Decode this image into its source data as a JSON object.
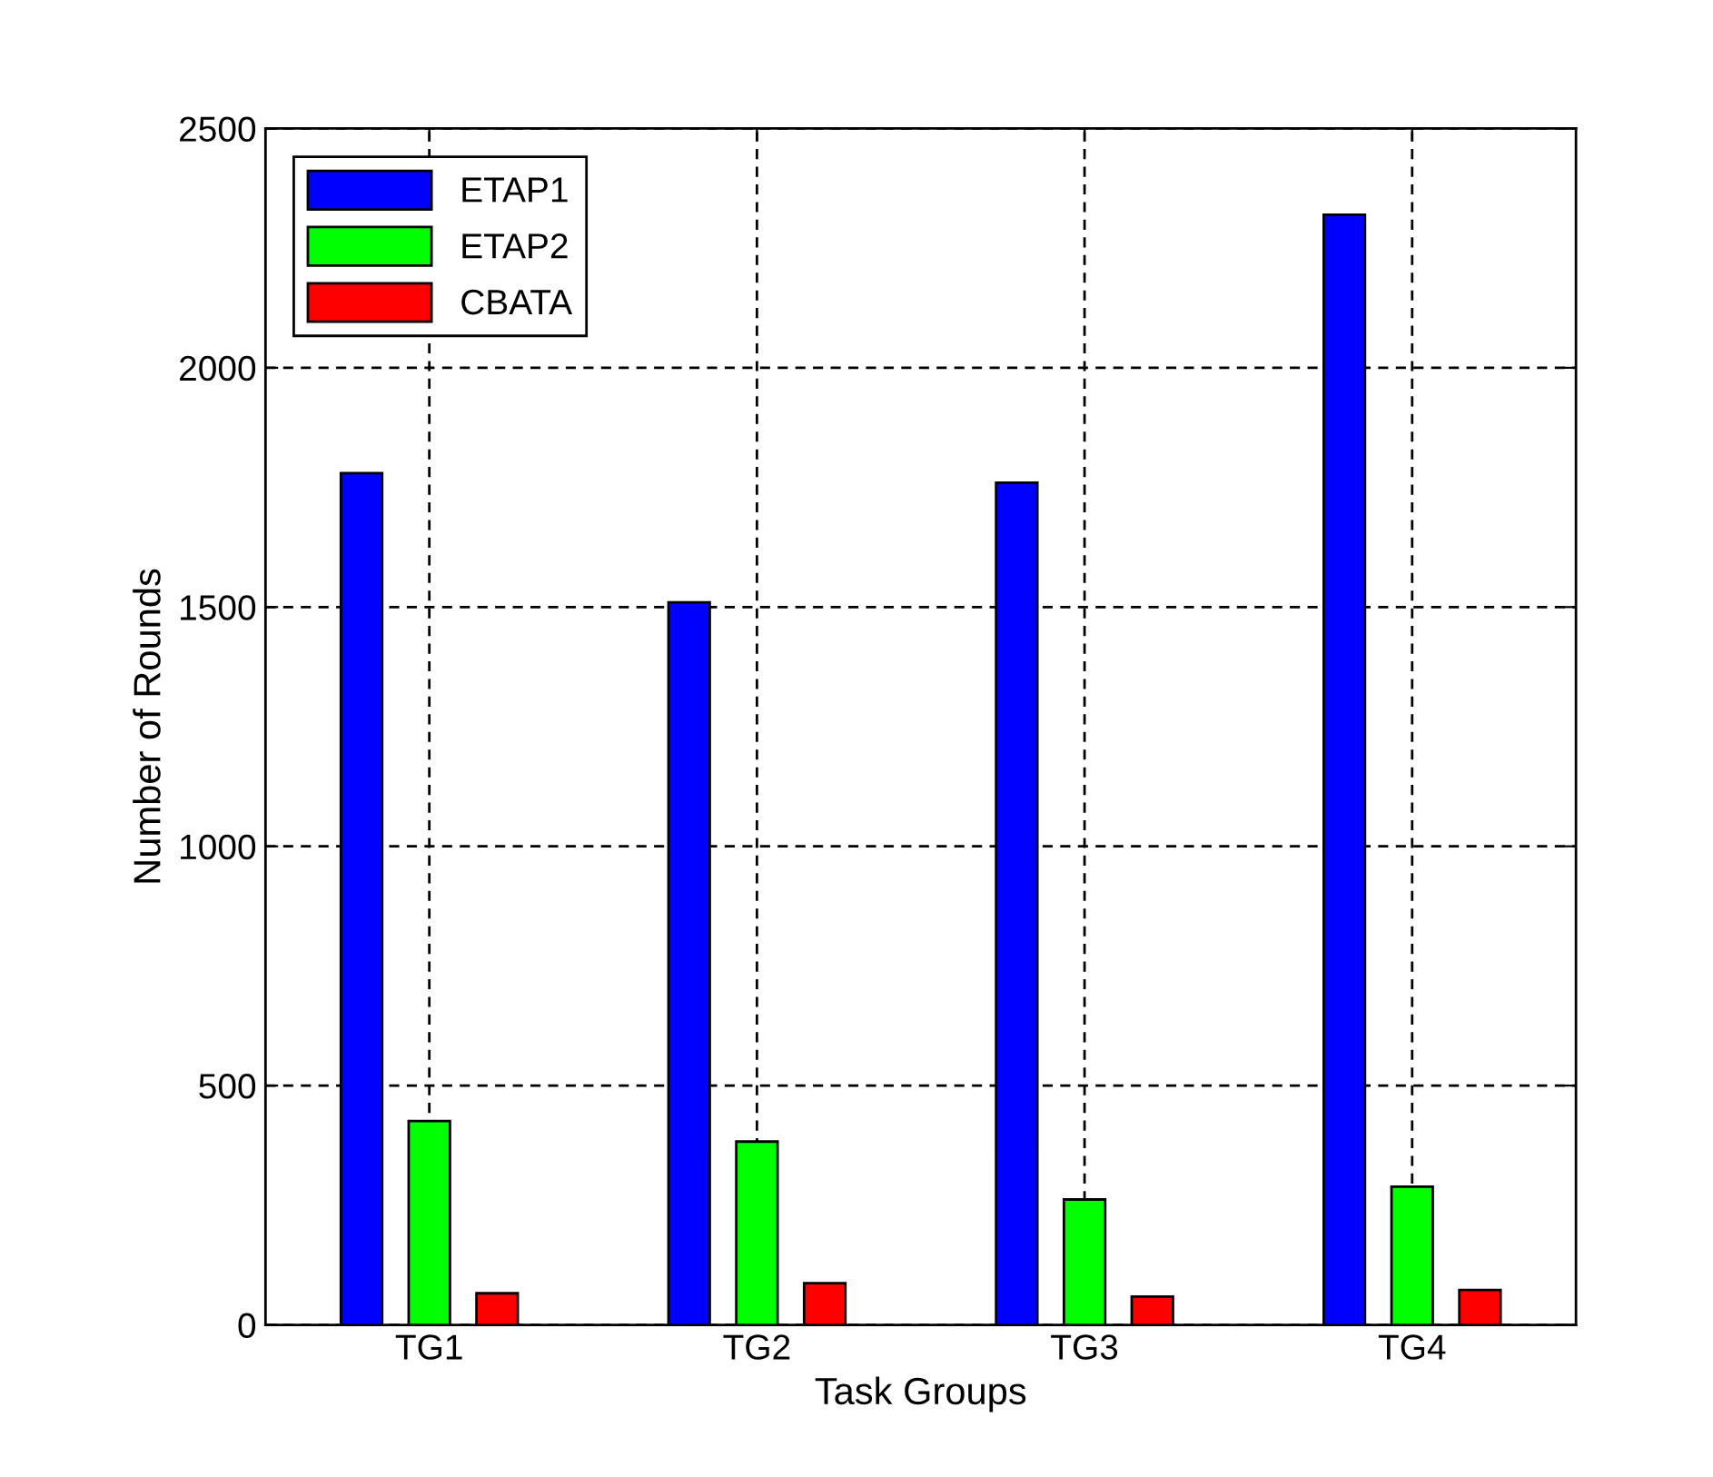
{
  "chart_data": {
    "type": "bar",
    "xlabel": "Task Groups",
    "ylabel": "Number of Rounds",
    "categories": [
      "TG1",
      "TG2",
      "TG3",
      "TG4"
    ],
    "series": [
      {
        "name": "ETAP1",
        "color": "#0000ff",
        "values": [
          1780,
          1510,
          1760,
          2320
        ]
      },
      {
        "name": "ETAP2",
        "color": "#00ff00",
        "values": [
          426,
          383,
          262,
          289
        ]
      },
      {
        "name": "CBATA",
        "color": "#ff0000",
        "values": [
          66,
          87,
          59,
          73
        ]
      }
    ],
    "ylim": [
      0,
      2500
    ],
    "yticks": [
      0,
      500,
      1000,
      1500,
      2000,
      2500
    ],
    "grid": true,
    "legend": "top left"
  }
}
